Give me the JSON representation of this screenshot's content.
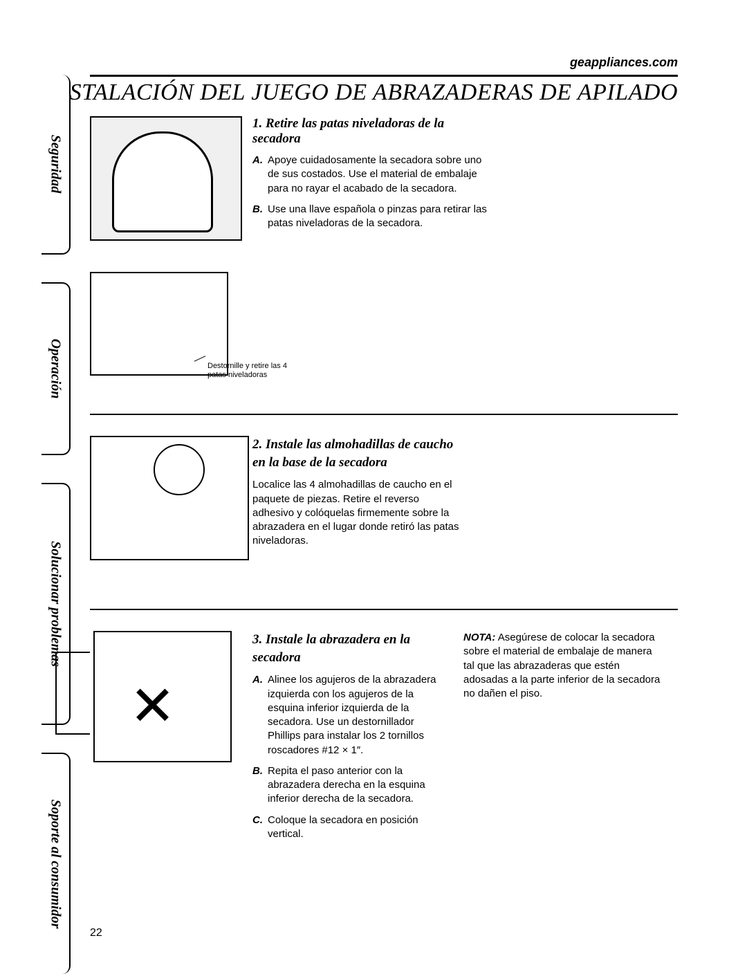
{
  "url": "geappliances.com",
  "title": "INSTALACIÓN DEL JUEGO DE ABRAZADERAS DE APILADO",
  "sidebar": {
    "tabs": [
      {
        "label": "Seguridad"
      },
      {
        "label": "Operación"
      },
      {
        "label": "Solucionar problemas"
      },
      {
        "label": "Soporte al consumidor"
      }
    ]
  },
  "section1": {
    "heading": "1. Retire las patas niveladoras de la secadora",
    "items": [
      {
        "letter": "A.",
        "text": "Apoye cuidadosamente la secadora sobre uno de sus costados. Use el material de embalaje para no rayar el acabado de la secadora."
      },
      {
        "letter": "B.",
        "text": "Use una llave española o pinzas para retirar las patas niveladoras de la secadora."
      }
    ],
    "diagram_caption": "Destornille y retire las 4 patas niveladoras"
  },
  "section2": {
    "heading": "2. Instale las almohadillas de caucho en la base de la secadora",
    "body": "Localice las 4 almohadillas de caucho en el paquete de piezas. Retire el reverso adhesivo y colóquelas firmemente sobre la abrazadera en el lugar donde retiró las patas niveladoras."
  },
  "section3": {
    "heading": "3. Instale la abrazadera en la secadora",
    "items": [
      {
        "letter": "A.",
        "text": "Alinee los agujeros de la abrazadera izquierda con los agujeros de la esquina inferior izquierda de la secadora. Use un destornillador Phillips para instalar los 2 tornillos roscadores #12 × 1″."
      },
      {
        "letter": "B.",
        "text": "Repita el paso anterior con la abrazadera derecha en la esquina inferior derecha de la secadora."
      },
      {
        "letter": "C.",
        "text": "Coloque la secadora en posición vertical."
      }
    ],
    "note_label": "NOTA:",
    "note_body": "Asegúrese de colocar la secadora sobre el material de embalaje de manera tal que las abrazaderas que estén adosadas a la parte inferior de la secadora no dañen el piso."
  },
  "page_number": "22",
  "colors": {
    "text": "#000000",
    "background": "#ffffff",
    "rule": "#000000"
  },
  "typography": {
    "title_fontsize": 34,
    "heading_fontsize": 19,
    "body_fontsize": 15,
    "tab_fontsize": 20,
    "caption_fontsize": 11
  }
}
